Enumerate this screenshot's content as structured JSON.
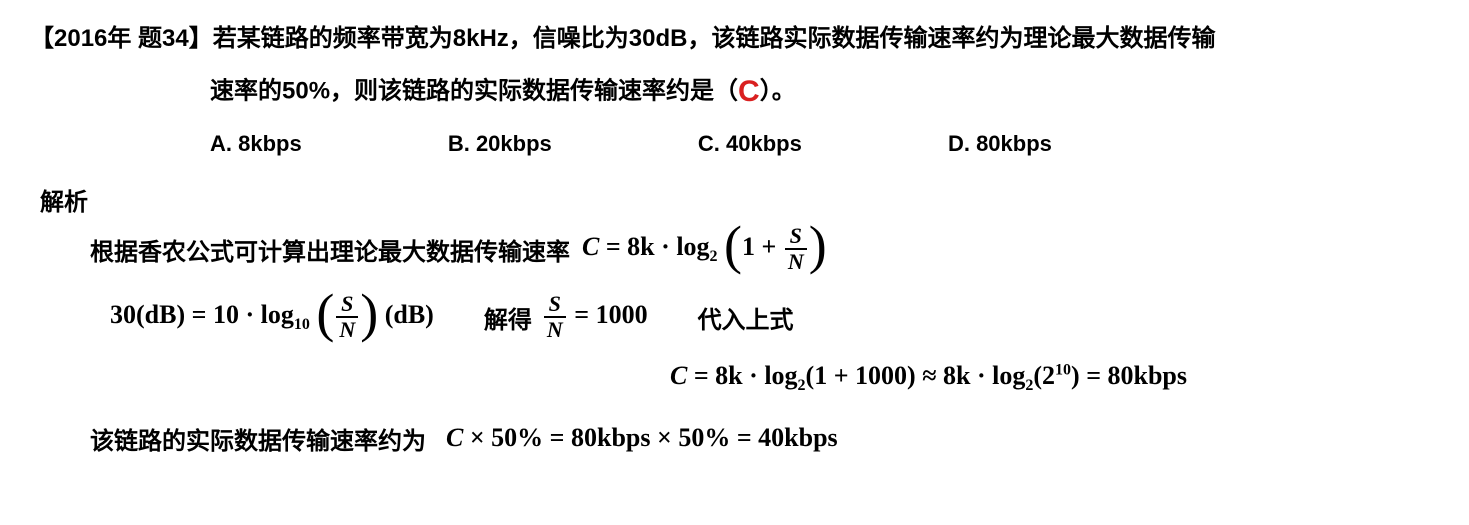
{
  "question": {
    "tag": "【2016年 题34】",
    "line1_text": "若某链路的频率带宽为8kHz，信噪比为30dB，该链路实际数据传输速率约为理论最大数据传输",
    "line2_text": "速率的50%，则该链路的实际数据传输速率约是（",
    "line2_suffix": "）。",
    "answer_letter": "C"
  },
  "options": {
    "a": "A. 8kbps",
    "b": "B. 20kbps",
    "c": "C. 40kbps",
    "d": "D. 80kbps"
  },
  "analysis": {
    "title": "解析",
    "line1_text": "根据香农公式可计算出理论最大数据传输速率",
    "formula1": {
      "lhs": "C",
      "eq": " = ",
      "k": "8k",
      "dot": " · ",
      "log": "log",
      "logbase": "2",
      "one_plus": "1 + ",
      "frac_num": "S",
      "frac_den": "N"
    },
    "formula2_left": {
      "lhs": "30(dB)",
      "eq": " = ",
      "ten": "10",
      "dot": " · ",
      "log": "log",
      "logbase": "10",
      "frac_num": "S",
      "frac_den": "N",
      "unit": "(dB)"
    },
    "formula2_mid_label": "解得",
    "formula2_mid": {
      "frac_num": "S",
      "frac_den": "N",
      "eq": " = ",
      "val": "1000"
    },
    "formula2_right_label": "代入上式",
    "formula3": {
      "lhs": "C",
      "eq": " = ",
      "k": "8k",
      "dot": " · ",
      "log": "log",
      "logbase": "2",
      "arg1": "(1 + 1000)",
      "approx": "  ≈ ",
      "k2": "8k",
      "arg2_open": "(",
      "arg2_base": "2",
      "arg2_exp": "10",
      "arg2_close": ")",
      "eq2": " = ",
      "result": "80kbps"
    },
    "line4_text": "该链路的实际数据传输速率约为",
    "formula4": {
      "lhs": "C",
      "times": " × ",
      "pct": "50%",
      "eq": " = ",
      "mid": "80kbps",
      "eq2": " = ",
      "result": "40kbps"
    }
  },
  "style": {
    "answer_color": "#d92020",
    "text_color": "#000000",
    "background": "#ffffff",
    "base_fontsize": 24,
    "math_fontsize": 26
  }
}
